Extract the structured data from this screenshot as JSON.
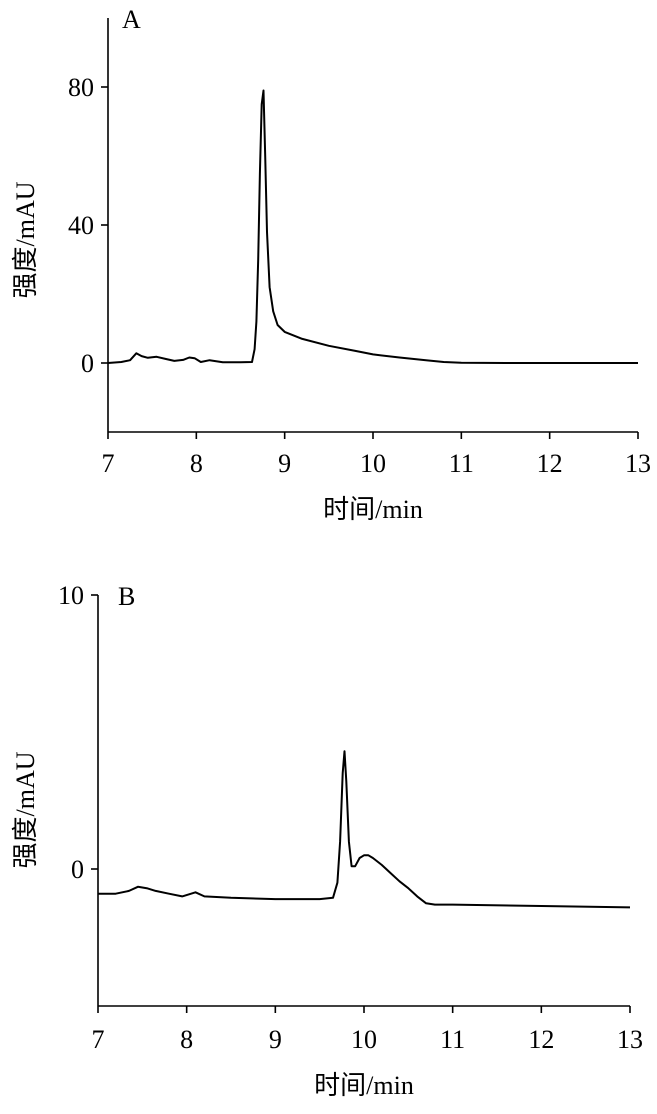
{
  "chart_data": [
    {
      "type": "line",
      "panel_label": "A",
      "xlabel": "时间/min",
      "ylabel": "强度/mAU",
      "xlim": [
        7,
        13
      ],
      "ylim": [
        -20,
        100
      ],
      "xticks": [
        7,
        8,
        9,
        10,
        11,
        12,
        13
      ],
      "yticks": [
        0,
        40,
        80
      ],
      "grid": false,
      "series": [
        {
          "x": [
            7.0,
            7.15,
            7.25,
            7.32,
            7.38,
            7.45,
            7.55,
            7.65,
            7.75,
            7.85,
            7.92,
            7.98,
            8.05,
            8.15,
            8.3,
            8.5,
            8.63,
            8.66,
            8.68,
            8.7,
            8.72,
            8.74,
            8.76,
            8.78,
            8.8,
            8.83,
            8.87,
            8.92,
            9.0,
            9.2,
            9.5,
            9.8,
            10.0,
            10.3,
            10.6,
            10.8,
            11.0,
            11.5,
            12.0,
            12.5,
            13.0
          ],
          "y": [
            0,
            0.3,
            0.8,
            2.8,
            2.0,
            1.5,
            1.8,
            1.2,
            0.6,
            0.9,
            1.6,
            1.4,
            0.3,
            0.8,
            0.2,
            0.2,
            0.3,
            4,
            12,
            30,
            55,
            75,
            79,
            60,
            38,
            22,
            15,
            11,
            9,
            7,
            5,
            3.5,
            2.5,
            1.6,
            0.8,
            0.3,
            0.1,
            0,
            0,
            0,
            0
          ]
        }
      ]
    },
    {
      "type": "line",
      "panel_label": "B",
      "xlabel": "时间/min",
      "ylabel": "强度/mAU",
      "xlim": [
        7,
        13
      ],
      "ylim": [
        -5,
        10
      ],
      "xticks": [
        7,
        8,
        9,
        10,
        11,
        12,
        13
      ],
      "yticks": [
        0,
        10
      ],
      "grid": false,
      "series": [
        {
          "x": [
            7.0,
            7.2,
            7.35,
            7.45,
            7.55,
            7.65,
            7.8,
            7.95,
            8.05,
            8.1,
            8.2,
            8.5,
            9.0,
            9.5,
            9.65,
            9.7,
            9.73,
            9.76,
            9.78,
            9.8,
            9.83,
            9.86,
            9.9,
            9.95,
            10.0,
            10.05,
            10.1,
            10.2,
            10.3,
            10.4,
            10.5,
            10.6,
            10.7,
            10.8,
            11.0,
            12.0,
            13.0
          ],
          "y": [
            -0.9,
            -0.9,
            -0.8,
            -0.65,
            -0.7,
            -0.8,
            -0.9,
            -1.0,
            -0.9,
            -0.85,
            -1.0,
            -1.05,
            -1.1,
            -1.1,
            -1.05,
            -0.5,
            1.0,
            3.5,
            4.3,
            3.2,
            1.0,
            0.1,
            0.1,
            0.4,
            0.5,
            0.5,
            0.4,
            0.15,
            -0.15,
            -0.45,
            -0.7,
            -1.0,
            -1.25,
            -1.3,
            -1.3,
            -1.35,
            -1.4
          ]
        }
      ]
    }
  ]
}
